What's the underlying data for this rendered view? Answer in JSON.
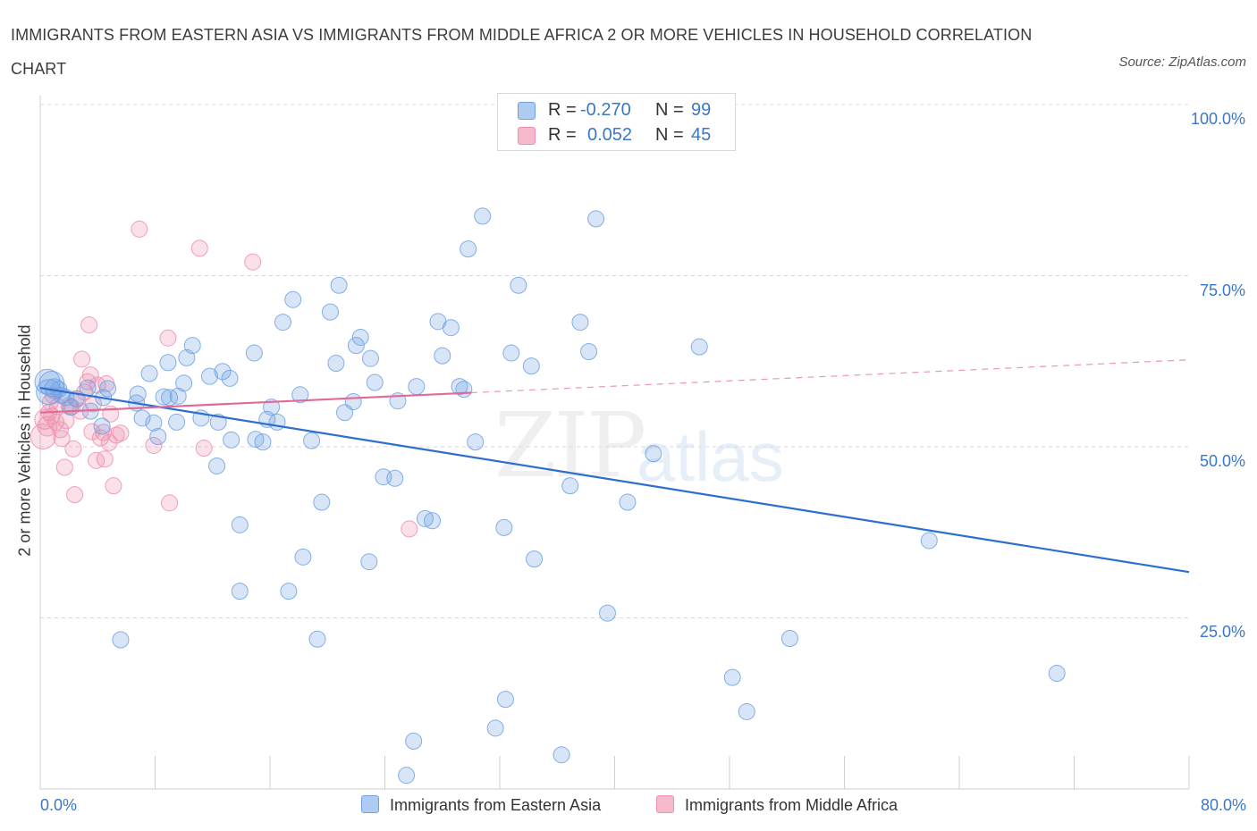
{
  "title": "IMMIGRANTS FROM EASTERN ASIA VS IMMIGRANTS FROM MIDDLE AFRICA 2 OR MORE VEHICLES IN HOUSEHOLD CORRELATION CHART",
  "source": "Source: ZipAtlas.com",
  "watermark": {
    "zip": "ZIP",
    "atlas": "atlas"
  },
  "legend": {
    "rows": [
      {
        "r_label": "R =",
        "r_value": "-0.270",
        "n_label": "N =",
        "n_value": "99",
        "color": "#aecbf2"
      },
      {
        "r_label": "R =",
        "r_value": "0.052",
        "n_label": "N =",
        "n_value": "45",
        "color": "#f7b8cc"
      }
    ]
  },
  "colors": {
    "blue_point": "#6fa2e4",
    "blue_line": "#2d6fce",
    "pink_point": "#ee8fae",
    "pink_line": "#e16a95",
    "axis_text": "#3a77c8"
  },
  "chart_data": {
    "type": "scatter",
    "title": "IMMIGRANTS FROM EASTERN ASIA VS IMMIGRANTS FROM MIDDLE AFRICA 2 OR MORE VEHICLES IN HOUSEHOLD CORRELATION CHART",
    "xlabel": "",
    "ylabel": "2 or more Vehicles in Household",
    "xlim": [
      0,
      80
    ],
    "ylim": [
      0,
      100
    ],
    "x_tick_labels": [
      "0.0%",
      "80.0%"
    ],
    "y_ticks": [
      25,
      50,
      75,
      100
    ],
    "y_tick_labels": [
      "25.0%",
      "50.0%",
      "75.0%",
      "100.0%"
    ],
    "grid": true,
    "legend_position": "bottom",
    "series": [
      {
        "name": "Immigrants from Eastern Asia",
        "R": -0.27,
        "N": 99,
        "trend": {
          "x": [
            0,
            80
          ],
          "y": [
            58.6,
            31.7
          ]
        },
        "points": [
          [
            0.5,
            59.5,
            3
          ],
          [
            0.8,
            59.2,
            3
          ],
          [
            1.0,
            58.5,
            2
          ],
          [
            0.6,
            58.0,
            3
          ],
          [
            1.3,
            58.4,
            1
          ],
          [
            1.8,
            57.2,
            1
          ],
          [
            2.5,
            57.0,
            1
          ],
          [
            3.3,
            58.6,
            1
          ],
          [
            4.7,
            58.5,
            1
          ],
          [
            4.4,
            57.2,
            1
          ],
          [
            3.5,
            55.2,
            1
          ],
          [
            6.7,
            56.4,
            1
          ],
          [
            6.8,
            57.7,
            1
          ],
          [
            7.1,
            54.2,
            1
          ],
          [
            7.9,
            53.5,
            1
          ],
          [
            7.6,
            60.7,
            1
          ],
          [
            8.2,
            51.5,
            1
          ],
          [
            8.6,
            57.3,
            1
          ],
          [
            9.0,
            57.2,
            1
          ],
          [
            8.9,
            62.3,
            1
          ],
          [
            9.5,
            53.6,
            1
          ],
          [
            9.6,
            57.4,
            1
          ],
          [
            10.0,
            59.3,
            1
          ],
          [
            10.2,
            63.0,
            1
          ],
          [
            10.6,
            64.8,
            1
          ],
          [
            11.2,
            54.2,
            1
          ],
          [
            11.8,
            60.3,
            1
          ],
          [
            12.3,
            47.2,
            1
          ],
          [
            12.4,
            53.6,
            1
          ],
          [
            12.7,
            61.0,
            1
          ],
          [
            13.2,
            60.0,
            1
          ],
          [
            13.3,
            51.0,
            1
          ],
          [
            13.9,
            38.6,
            1
          ],
          [
            13.9,
            28.9,
            1
          ],
          [
            14.9,
            63.7,
            1
          ],
          [
            15.0,
            51.1,
            1
          ],
          [
            15.5,
            50.7,
            1
          ],
          [
            15.8,
            54.0,
            1
          ],
          [
            16.1,
            55.8,
            1
          ],
          [
            16.5,
            53.6,
            1
          ],
          [
            16.9,
            68.2,
            1
          ],
          [
            17.3,
            28.9,
            1
          ],
          [
            17.6,
            71.5,
            1
          ],
          [
            18.1,
            57.6,
            1
          ],
          [
            18.3,
            33.9,
            1
          ],
          [
            18.9,
            50.9,
            1
          ],
          [
            19.3,
            21.9,
            1
          ],
          [
            19.6,
            41.9,
            1
          ],
          [
            20.2,
            69.7,
            1
          ],
          [
            20.6,
            62.2,
            1
          ],
          [
            20.8,
            73.6,
            1
          ],
          [
            21.2,
            55.0,
            1
          ],
          [
            21.8,
            56.6,
            1
          ],
          [
            22.0,
            64.8,
            1
          ],
          [
            22.3,
            66.0,
            1
          ],
          [
            22.9,
            33.2,
            1
          ],
          [
            23.0,
            62.9,
            1
          ],
          [
            23.3,
            59.4,
            1
          ],
          [
            23.9,
            45.6,
            1
          ],
          [
            24.7,
            45.4,
            1
          ],
          [
            24.9,
            56.7,
            1
          ],
          [
            26.2,
            58.8,
            1
          ],
          [
            26.8,
            39.5,
            1
          ],
          [
            27.3,
            39.2,
            1
          ],
          [
            27.7,
            68.3,
            1
          ],
          [
            28.0,
            63.3,
            1
          ],
          [
            28.6,
            67.4,
            1
          ],
          [
            29.2,
            58.8,
            1
          ],
          [
            29.5,
            58.4,
            1
          ],
          [
            29.8,
            78.9,
            1
          ],
          [
            30.3,
            50.7,
            1
          ],
          [
            30.8,
            83.7,
            1
          ],
          [
            31.7,
            8.9,
            1
          ],
          [
            32.3,
            38.2,
            1
          ],
          [
            32.4,
            13.1,
            1
          ],
          [
            32.8,
            63.7,
            1
          ],
          [
            33.3,
            73.6,
            1
          ],
          [
            34.2,
            61.8,
            1
          ],
          [
            34.4,
            33.6,
            1
          ],
          [
            36.3,
            5.0,
            1
          ],
          [
            36.9,
            44.3,
            1
          ],
          [
            37.6,
            68.2,
            1
          ],
          [
            38.2,
            63.9,
            1
          ],
          [
            38.7,
            83.3,
            1
          ],
          [
            39.5,
            25.7,
            1
          ],
          [
            40.9,
            41.9,
            1
          ],
          [
            42.7,
            49.0,
            1
          ],
          [
            45.9,
            64.6,
            1
          ],
          [
            48.2,
            16.3,
            1
          ],
          [
            49.2,
            11.3,
            1
          ],
          [
            52.2,
            22.0,
            1
          ],
          [
            61.9,
            36.3,
            1
          ],
          [
            70.8,
            16.9,
            1
          ],
          [
            5.6,
            21.8,
            1
          ],
          [
            26.0,
            7.0,
            1
          ],
          [
            25.5,
            2.0,
            1
          ],
          [
            4.3,
            53.0,
            1
          ],
          [
            2.1,
            55.8,
            1
          ],
          [
            1.5,
            57.5,
            1
          ]
        ]
      },
      {
        "name": "Immigrants from Middle Africa",
        "R": 0.052,
        "N": 45,
        "trend": {
          "x": [
            0,
            30
          ],
          "y": [
            55.0,
            57.9
          ]
        },
        "trend_extension": {
          "x": [
            30,
            80
          ],
          "y": [
            57.9,
            62.7
          ]
        },
        "points": [
          [
            0.2,
            51.5,
            3
          ],
          [
            0.3,
            54.0,
            2
          ],
          [
            0.5,
            53.0,
            2
          ],
          [
            0.6,
            55.0,
            1
          ],
          [
            0.7,
            56.5,
            1
          ],
          [
            0.8,
            54.5,
            1
          ],
          [
            1.2,
            55.9,
            1
          ],
          [
            1.4,
            52.5,
            1
          ],
          [
            1.5,
            51.2,
            1
          ],
          [
            1.7,
            47.0,
            1
          ],
          [
            1.8,
            53.8,
            1
          ],
          [
            2.0,
            56.0,
            1
          ],
          [
            2.2,
            55.8,
            1
          ],
          [
            2.4,
            43.0,
            1
          ],
          [
            2.6,
            57.0,
            1
          ],
          [
            2.8,
            55.2,
            1
          ],
          [
            2.9,
            62.8,
            1
          ],
          [
            3.1,
            58.0,
            1
          ],
          [
            3.3,
            59.5,
            1
          ],
          [
            3.4,
            67.8,
            1
          ],
          [
            3.5,
            60.5,
            1
          ],
          [
            3.7,
            56.3,
            1
          ],
          [
            3.9,
            48.0,
            1
          ],
          [
            4.0,
            59.0,
            1
          ],
          [
            4.2,
            51.3,
            1
          ],
          [
            4.4,
            52.1,
            1
          ],
          [
            4.5,
            48.2,
            1
          ],
          [
            4.6,
            59.2,
            1
          ],
          [
            4.9,
            54.8,
            1
          ],
          [
            5.1,
            44.3,
            1
          ],
          [
            5.3,
            51.7,
            1
          ],
          [
            5.6,
            52.0,
            1
          ],
          [
            6.9,
            81.8,
            1
          ],
          [
            7.9,
            50.2,
            1
          ],
          [
            8.9,
            65.9,
            1
          ],
          [
            9.0,
            41.8,
            1
          ],
          [
            11.1,
            79.0,
            1
          ],
          [
            11.4,
            49.8,
            1
          ],
          [
            14.8,
            77.0,
            1
          ],
          [
            25.7,
            38.0,
            1
          ],
          [
            0.9,
            57.5,
            1
          ],
          [
            1.1,
            53.6,
            1
          ],
          [
            2.3,
            49.7,
            1
          ],
          [
            3.6,
            52.2,
            1
          ],
          [
            4.8,
            50.6,
            1
          ]
        ]
      }
    ]
  }
}
